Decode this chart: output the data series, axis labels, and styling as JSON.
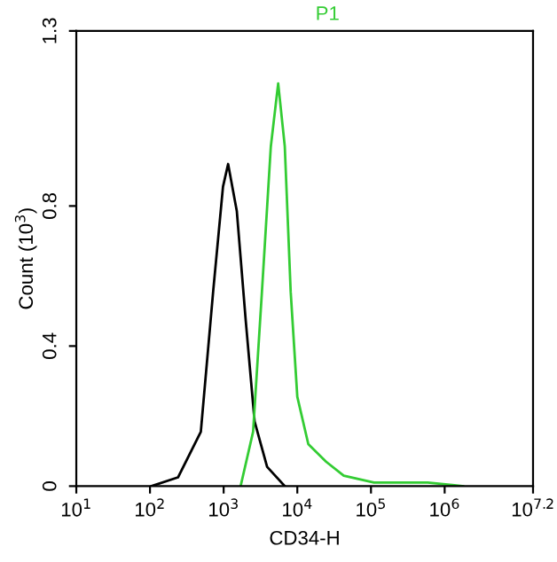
{
  "chart_data": {
    "type": "line",
    "xlabel": "CD34-H",
    "ylabel": "Count (10$^{3}$)",
    "log": "x",
    "grid": false,
    "legend": false,
    "marker": "none",
    "line_style": "solid",
    "xlim": [
      10,
      15848931.9
    ],
    "ylim": [
      0,
      1.3
    ],
    "xticks": [
      {
        "value": 10,
        "label": "10$^{1}$"
      },
      {
        "value": 100,
        "label": "10$^{2}$"
      },
      {
        "value": 1000,
        "label": "10$^{3}$"
      },
      {
        "value": 10000,
        "label": "10$^{4}$"
      },
      {
        "value": 100000,
        "label": "10$^{5}$"
      },
      {
        "value": 1000000,
        "label": "10$^{6}$"
      },
      {
        "value": 15848931.9,
        "label": "10$^{7.2}$"
      }
    ],
    "yticks": [
      0,
      0.4,
      0.8,
      1.3
    ],
    "series": [
      {
        "color": "#000000",
        "x": [
          105,
          240,
          490,
          720,
          980,
          1150,
          1510,
          2000,
          2630,
          3890,
          6760
        ],
        "values": [
          0,
          0.025,
          0.155,
          0.555,
          0.855,
          0.92,
          0.785,
          0.47,
          0.185,
          0.055,
          0
        ]
      },
      {
        "name": "P1",
        "color": "#33cc33",
        "x": [
          1700,
          2510,
          3310,
          4370,
          5500,
          6760,
          8130,
          10000,
          14100,
          24500,
          42700,
          110000,
          589000,
          1780000
        ],
        "values": [
          0,
          0.155,
          0.555,
          0.97,
          1.15,
          0.97,
          0.555,
          0.255,
          0.12,
          0.07,
          0.03,
          0.01,
          0.01,
          0
        ]
      }
    ]
  }
}
